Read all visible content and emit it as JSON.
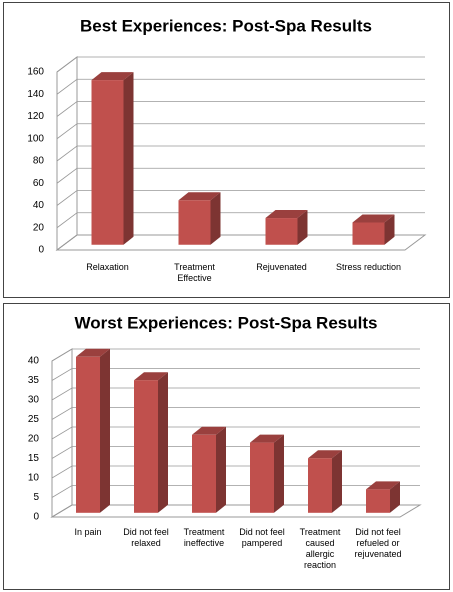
{
  "chart_data": [
    {
      "type": "bar",
      "title": "Best Experiences:  Post-Spa Results",
      "categories": [
        "Relaxation",
        "Treatment Effective",
        "Rejuvenated",
        "Stress reduction"
      ],
      "values": [
        148,
        40,
        24,
        20
      ],
      "color": "#c0504d",
      "ylim": [
        0,
        160
      ],
      "yticks": [
        0,
        20,
        40,
        60,
        80,
        100,
        120,
        140,
        160
      ],
      "grid": true
    },
    {
      "type": "bar",
      "title": "Worst Experiences:  Post-Spa Results",
      "categories": [
        "In pain",
        "Did not feel relaxed",
        "Treatment ineffective",
        "Did not feel pampered",
        "Treatment caused allergic reaction",
        "Did not feel refueled or rejuvenated"
      ],
      "values": [
        40,
        34,
        20,
        18,
        14,
        6
      ],
      "color": "#c0504d",
      "ylim": [
        0,
        40
      ],
      "yticks": [
        0,
        5,
        10,
        15,
        20,
        25,
        30,
        35,
        40
      ],
      "grid": true
    }
  ]
}
